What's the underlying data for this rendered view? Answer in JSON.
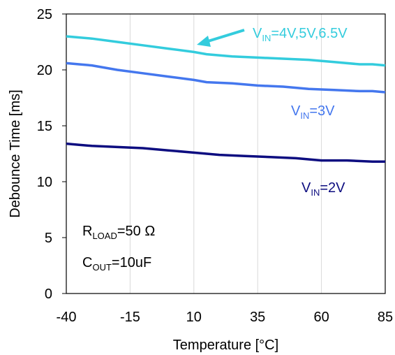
{
  "chart_data": {
    "type": "line",
    "title": "",
    "xlabel": "Temperature [°C]",
    "ylabel": "Debounce Time [ms]",
    "xlim": [
      -40,
      85
    ],
    "ylim": [
      0,
      25
    ],
    "x_ticks": [
      -40,
      -15,
      10,
      35,
      60,
      85
    ],
    "y_ticks": [
      0,
      5,
      10,
      15,
      20,
      25
    ],
    "grid": "vertical",
    "series": [
      {
        "name": "VIN=4V,5V,6.5V",
        "label_main": "V",
        "label_sub": "IN",
        "label_rest": "=4V,5V,6.5V",
        "color": "#33CCDD",
        "x": [
          -40,
          -35,
          -30,
          -20,
          -10,
          0,
          10,
          15,
          25,
          35,
          45,
          55,
          65,
          75,
          80,
          85
        ],
        "y": [
          23.0,
          22.9,
          22.8,
          22.5,
          22.2,
          21.9,
          21.6,
          21.4,
          21.2,
          21.1,
          21.0,
          20.9,
          20.7,
          20.5,
          20.5,
          20.4
        ]
      },
      {
        "name": "VIN=3V",
        "label_main": "V",
        "label_sub": "IN",
        "label_rest": "=3V",
        "color": "#4477EE",
        "x": [
          -40,
          -35,
          -30,
          -20,
          -10,
          0,
          10,
          15,
          25,
          35,
          45,
          55,
          65,
          75,
          80,
          85
        ],
        "y": [
          20.6,
          20.5,
          20.4,
          20.0,
          19.7,
          19.4,
          19.1,
          18.9,
          18.8,
          18.6,
          18.5,
          18.3,
          18.2,
          18.1,
          18.1,
          18.0
        ]
      },
      {
        "name": "VIN=2V",
        "label_main": "V",
        "label_sub": "IN",
        "label_rest": "=2V",
        "color": "#0D0D80",
        "x": [
          -40,
          -35,
          -30,
          -20,
          -10,
          0,
          10,
          20,
          30,
          40,
          50,
          60,
          70,
          80,
          85
        ],
        "y": [
          13.4,
          13.3,
          13.2,
          13.1,
          13.0,
          12.8,
          12.6,
          12.4,
          12.3,
          12.2,
          12.1,
          11.9,
          11.9,
          11.8,
          11.8
        ]
      }
    ],
    "annotations": {
      "rload": {
        "main": "R",
        "sub": "LOAD",
        "rest": "=50 Ω"
      },
      "cout": {
        "main": "C",
        "sub": "OUT",
        "rest": "=10uF"
      }
    }
  }
}
